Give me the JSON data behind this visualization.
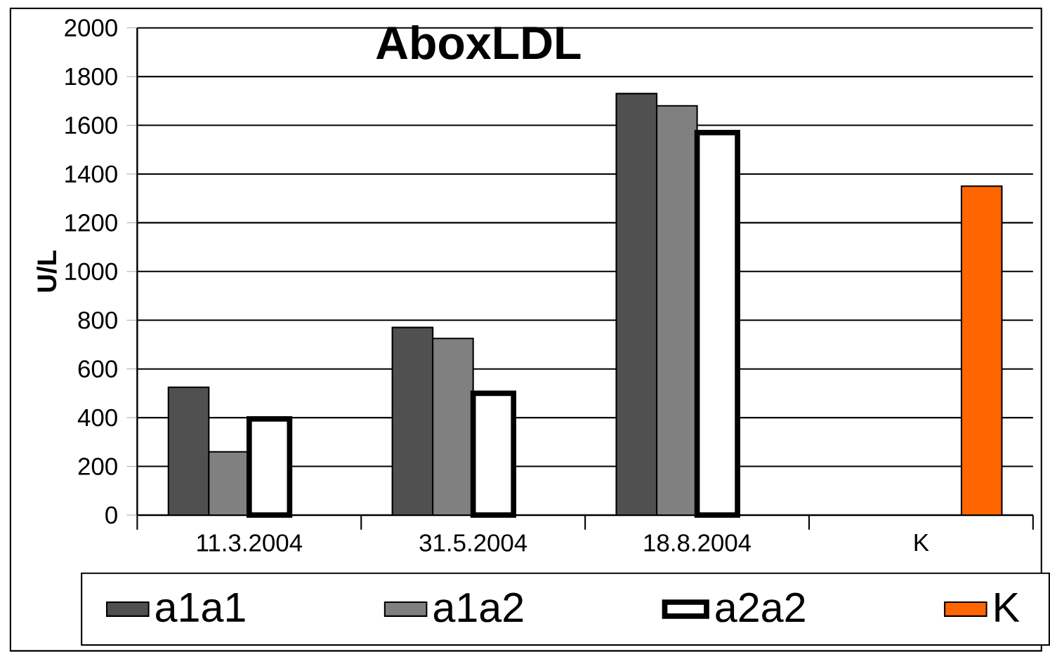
{
  "chart_data": {
    "type": "bar",
    "title": "AboxLDL",
    "ylabel": "U/L",
    "categories": [
      "11.3.2004",
      "31.5.2004",
      "18.8.2004",
      "K"
    ],
    "series": [
      {
        "name": "a1a1",
        "color": "#505050",
        "values": [
          525,
          770,
          1730,
          null
        ]
      },
      {
        "name": "a1a2",
        "color": "#808080",
        "values": [
          260,
          725,
          1680,
          null
        ]
      },
      {
        "name": "a2a2",
        "color": "#ffffff",
        "values": [
          395,
          500,
          1570,
          null
        ]
      },
      {
        "name": "K",
        "color": "#ff6600",
        "values": [
          null,
          null,
          null,
          1350
        ]
      }
    ],
    "ylim": [
      0,
      2000
    ],
    "yticks": [
      0,
      200,
      400,
      600,
      800,
      1000,
      1200,
      1400,
      1600,
      1800,
      2000
    ],
    "grid": "y",
    "legend": "bottom"
  }
}
